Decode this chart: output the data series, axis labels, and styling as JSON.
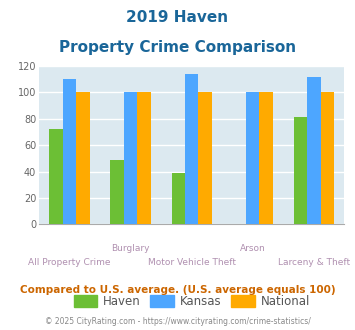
{
  "title_line1": "2019 Haven",
  "title_line2": "Property Crime Comparison",
  "categories": [
    "All Property Crime",
    "Burglary",
    "Motor Vehicle Theft",
    "Arson",
    "Larceny & Theft"
  ],
  "tick_labels_top": [
    "",
    "Burglary",
    "",
    "Arson",
    ""
  ],
  "tick_labels_bottom": [
    "All Property Crime",
    "",
    "Motor Vehicle Theft",
    "",
    "Larceny & Theft"
  ],
  "haven_values": [
    72,
    49,
    39,
    0,
    81
  ],
  "kansas_values": [
    110,
    100,
    114,
    100,
    112
  ],
  "national_values": [
    100,
    100,
    100,
    100,
    100
  ],
  "haven_color": "#6cbf35",
  "kansas_color": "#4da6ff",
  "national_color": "#ffaa00",
  "title_color": "#1a6699",
  "ylim": [
    0,
    120
  ],
  "yticks": [
    0,
    20,
    40,
    60,
    80,
    100,
    120
  ],
  "background_color": "#dce9f0",
  "grid_color": "#ffffff",
  "footer_text": "Compared to U.S. average. (U.S. average equals 100)",
  "footer_color": "#cc6600",
  "copyright_text": "© 2025 CityRating.com - https://www.cityrating.com/crime-statistics/",
  "copyright_color": "#888888",
  "bar_width": 0.22,
  "legend_labels": [
    "Haven",
    "Kansas",
    "National"
  ],
  "label_color": "#b090b0"
}
